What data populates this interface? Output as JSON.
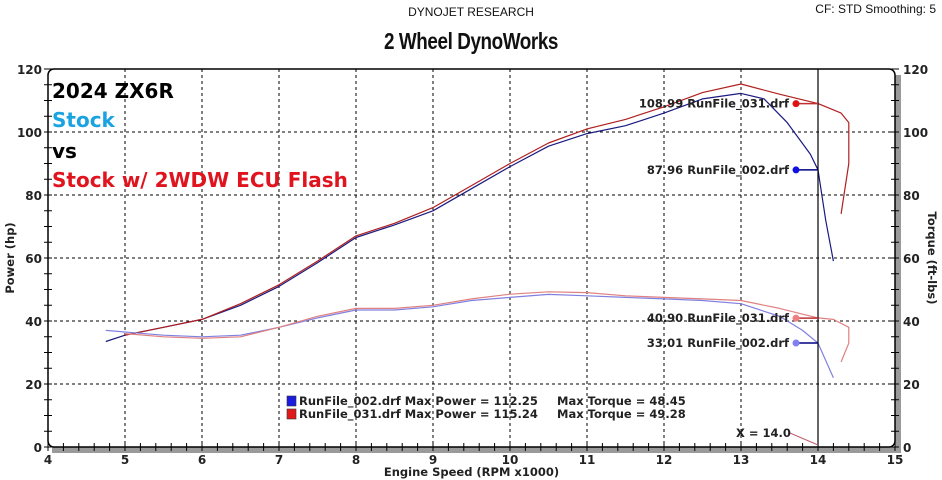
{
  "header": {
    "company": "DYNOJET RESEARCH",
    "settings": "CF: STD  Smoothing: 5",
    "title": "2 Wheel DynoWorks"
  },
  "annotations": [
    {
      "text": "2024 ZX6R",
      "color": "#000000"
    },
    {
      "text": "Stock",
      "color": "#1aa3e0"
    },
    {
      "text": "vs",
      "color": "#000000"
    },
    {
      "text": "Stock w/ 2WDW ECU Flash",
      "color": "#e0141e"
    }
  ],
  "cursor_labels": [
    {
      "text": "108.99 RunFile_031.drf",
      "value": 108.99,
      "color": "#e01010"
    },
    {
      "text": "87.96 RunFile_002.drf",
      "value": 87.96,
      "color": "#1010e0"
    },
    {
      "text": "40.90 RunFile_031.drf",
      "value": 40.9,
      "color": "#f08080"
    },
    {
      "text": "33.01 RunFile_002.drf",
      "value": 33.01,
      "color": "#8080f0"
    }
  ],
  "cursor": {
    "text": "X = 14.0",
    "x": 14.0
  },
  "legend": [
    {
      "text": "RunFile_002.drf Max Power = 112.25",
      "torque": "Max Torque = 48.45",
      "color": "#1a1ae0"
    },
    {
      "text": "RunFile_031.drf Max Power = 115.24",
      "torque": "Max Torque = 49.28",
      "color": "#e01a1a"
    }
  ],
  "chart_data": {
    "type": "line",
    "title": "2 Wheel DynoWorks",
    "subtitle": "DYNOJET RESEARCH",
    "xlabel": "Engine Speed (RPM x1000)",
    "ylabel": "Power (hp)",
    "y2label": "Torque (ft-lbs)",
    "xlim": [
      4,
      15
    ],
    "ylim": [
      0,
      120
    ],
    "y2lim": [
      0,
      120
    ],
    "xticks": [
      4,
      5,
      6,
      7,
      8,
      9,
      10,
      11,
      12,
      13,
      14,
      15
    ],
    "yticks": [
      0,
      20,
      40,
      60,
      80,
      100,
      120
    ],
    "grid": true,
    "series": [
      {
        "name": "RunFile_002.drf Power (Stock)",
        "axis": "left",
        "color": "#1a1a80",
        "x": [
          4.75,
          5.0,
          5.5,
          6.0,
          6.5,
          7.0,
          7.5,
          8.0,
          8.5,
          9.0,
          9.5,
          10.0,
          10.5,
          11.0,
          11.5,
          12.0,
          12.5,
          13.0,
          13.3,
          13.6,
          13.9,
          14.0,
          14.1,
          14.2
        ],
        "y": [
          33.5,
          35.5,
          38,
          40.5,
          45,
          51,
          58.5,
          66.5,
          70.5,
          75,
          82,
          89,
          95.5,
          99.5,
          102,
          106,
          110.5,
          112.25,
          110.5,
          103,
          93,
          88,
          72,
          59
        ]
      },
      {
        "name": "RunFile_031.drf Power (2WDW ECU Flash)",
        "axis": "left",
        "color": "#b02020",
        "x": [
          5.0,
          5.5,
          6.0,
          6.5,
          7.0,
          7.5,
          8.0,
          8.5,
          9.0,
          9.5,
          10.0,
          10.5,
          11.0,
          11.5,
          12.0,
          12.5,
          13.0,
          13.5,
          14.0,
          14.3,
          14.4,
          14.4,
          14.3
        ],
        "y": [
          35.5,
          38,
          40.5,
          45.5,
          51.5,
          59,
          67,
          71,
          76,
          83,
          90,
          96.5,
          101,
          104,
          108,
          112.5,
          115.24,
          112,
          109,
          106,
          103,
          90,
          74
        ]
      },
      {
        "name": "RunFile_002.drf Torque (Stock)",
        "axis": "right",
        "color": "#8080e0",
        "x": [
          4.75,
          5.0,
          5.5,
          6.0,
          6.5,
          7.0,
          7.5,
          8.0,
          8.5,
          9.0,
          9.5,
          10.0,
          10.5,
          11.0,
          11.5,
          12.0,
          12.5,
          13.0,
          13.5,
          13.8,
          14.0,
          14.2
        ],
        "y": [
          37,
          36.5,
          35.5,
          35,
          35.5,
          38,
          41,
          43.5,
          43.5,
          44.5,
          46.5,
          47.5,
          48.45,
          48,
          47.5,
          47,
          46.5,
          45.5,
          41.5,
          37,
          33,
          22
        ]
      },
      {
        "name": "RunFile_031.drf Torque (2WDW ECU Flash)",
        "axis": "right",
        "color": "#e08080",
        "x": [
          5.0,
          5.5,
          6.0,
          6.5,
          7.0,
          7.5,
          8.0,
          8.5,
          9.0,
          9.5,
          10.0,
          10.5,
          11.0,
          11.5,
          12.0,
          12.5,
          13.0,
          13.5,
          14.0,
          14.2,
          14.4,
          14.4,
          14.3
        ],
        "y": [
          36,
          35,
          34.5,
          35,
          38,
          41.5,
          44,
          44,
          45,
          47,
          48.5,
          49.28,
          49,
          48,
          47.5,
          47,
          46.5,
          44,
          41,
          40.5,
          38,
          33,
          27
        ]
      }
    ],
    "max_values": {
      "RunFile_002.drf": {
        "max_power": 112.25,
        "max_torque": 48.45
      },
      "RunFile_031.drf": {
        "max_power": 115.24,
        "max_torque": 49.28
      }
    },
    "cursor_readout_at_x_14": {
      "RunFile_031.drf_power": 108.99,
      "RunFile_002.drf_power": 87.96,
      "RunFile_031.drf_torque": 40.9,
      "RunFile_002.drf_torque": 33.01
    }
  }
}
